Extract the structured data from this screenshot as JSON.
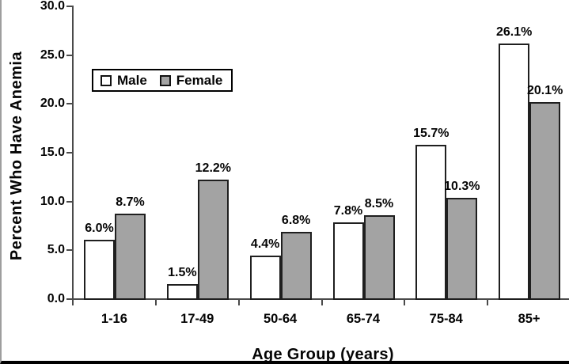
{
  "figure": {
    "y_axis_title": "Percent Who Have Anemia",
    "x_axis_title": "Age Group (years)"
  },
  "legend": {
    "male_label": "Male",
    "female_label": "Female"
  },
  "chart_data": {
    "type": "bar",
    "title": "",
    "xlabel": "Age Group (years)",
    "ylabel": "Percent Who Have Anemia",
    "categories": [
      "1-16",
      "17-49",
      "50-64",
      "65-74",
      "75-84",
      "85+"
    ],
    "series": [
      {
        "name": "Male",
        "values": [
          6.0,
          1.5,
          4.4,
          7.8,
          15.7,
          26.1
        ],
        "labels": [
          "6.0%",
          "1.5%",
          "4.4%",
          "7.8%",
          "15.7%",
          "26.1%"
        ],
        "fill": "#ffffff"
      },
      {
        "name": "Female",
        "values": [
          8.7,
          12.2,
          6.8,
          8.5,
          10.3,
          20.1
        ],
        "labels": [
          "8.7%",
          "12.2%",
          "6.8%",
          "8.5%",
          "10.3%",
          "20.1%"
        ],
        "fill": "#a3a3a3"
      }
    ],
    "ylim": [
      0,
      30
    ],
    "yticks": [
      0,
      5,
      10,
      15,
      20,
      25,
      30
    ],
    "ytick_labels": [
      "0.0",
      "5.0",
      "10.0",
      "15.0",
      "20.0",
      "25.0",
      "30.0"
    ],
    "grid": false,
    "legend_position": "upper-left-inside",
    "bar_label_format": "{value}%"
  },
  "colors": {
    "male_fill": "#ffffff",
    "female_fill": "#a3a3a3",
    "bar_border": "#1f1f1f",
    "axis": "#4a4a4a",
    "text": "#050505",
    "legend_border": "#000000",
    "frame_bottom": "#000000",
    "frame_left": "#9e9e9e"
  }
}
